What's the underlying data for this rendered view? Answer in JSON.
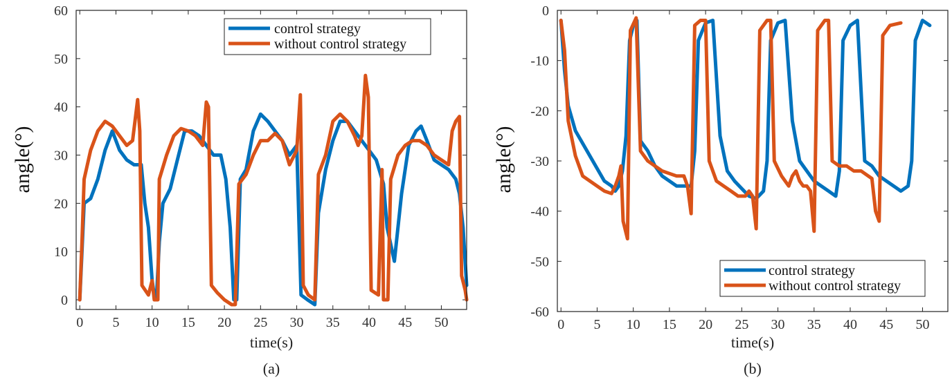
{
  "colors": {
    "control": "#0072BD",
    "without": "#D95319"
  },
  "chart_data": [
    {
      "type": "line",
      "caption": "(a)",
      "xlabel": "time(s)",
      "ylabel": "angle(°)",
      "xlim": [
        -0.5,
        53.5
      ],
      "ylim": [
        -2,
        60
      ],
      "xticks": [
        0,
        5,
        10,
        15,
        20,
        25,
        30,
        35,
        40,
        45,
        50
      ],
      "yticks": [
        0,
        10,
        20,
        30,
        40,
        50,
        60
      ],
      "legend_position": "top-right",
      "series": [
        {
          "name": "control strategy",
          "key": "control",
          "points": [
            [
              0,
              0
            ],
            [
              0.3,
              10
            ],
            [
              0.6,
              20
            ],
            [
              1.5,
              21
            ],
            [
              2.5,
              25
            ],
            [
              3.5,
              31
            ],
            [
              4.5,
              35
            ],
            [
              5.5,
              31
            ],
            [
              6.5,
              29
            ],
            [
              7.5,
              28
            ],
            [
              8.5,
              28
            ],
            [
              9,
              20
            ],
            [
              9.5,
              15
            ],
            [
              10,
              4
            ],
            [
              10.3,
              1
            ],
            [
              10.6,
              0
            ],
            [
              11,
              12
            ],
            [
              11.5,
              20
            ],
            [
              12.5,
              23
            ],
            [
              13.5,
              29
            ],
            [
              14.5,
              35
            ],
            [
              15.5,
              35
            ],
            [
              16.5,
              34
            ],
            [
              17.5,
              32
            ],
            [
              18.5,
              30
            ],
            [
              19.5,
              30
            ],
            [
              20.2,
              25
            ],
            [
              20.8,
              15
            ],
            [
              21.3,
              0
            ],
            [
              21.7,
              0
            ],
            [
              22.2,
              25
            ],
            [
              23,
              27
            ],
            [
              24,
              35
            ],
            [
              25,
              38.5
            ],
            [
              26,
              37
            ],
            [
              27,
              35
            ],
            [
              28,
              33
            ],
            [
              29,
              30
            ],
            [
              30,
              32
            ],
            [
              30.6,
              1
            ],
            [
              31.5,
              0
            ],
            [
              32.5,
              -1
            ],
            [
              33,
              18
            ],
            [
              34,
              27
            ],
            [
              35,
              33
            ],
            [
              36,
              37
            ],
            [
              37,
              37
            ],
            [
              38,
              35
            ],
            [
              39,
              33
            ],
            [
              40,
              31
            ],
            [
              41,
              29
            ],
            [
              42,
              24
            ],
            [
              42.5,
              15
            ],
            [
              43.5,
              8
            ],
            [
              44.5,
              22
            ],
            [
              45.5,
              32
            ],
            [
              46.5,
              35
            ],
            [
              47.2,
              36
            ],
            [
              48,
              33
            ],
            [
              49,
              29
            ],
            [
              50,
              28
            ],
            [
              51,
              27
            ],
            [
              52,
              25
            ],
            [
              52.5,
              22
            ],
            [
              53,
              15
            ],
            [
              53.5,
              3
            ]
          ]
        },
        {
          "name": "without control strategy",
          "key": "without",
          "points": [
            [
              0,
              0
            ],
            [
              0.3,
              12
            ],
            [
              0.6,
              25
            ],
            [
              1.5,
              31
            ],
            [
              2.5,
              35
            ],
            [
              3.5,
              37
            ],
            [
              4.5,
              36
            ],
            [
              5.5,
              34
            ],
            [
              6.5,
              32
            ],
            [
              7.3,
              33
            ],
            [
              8,
              41.5
            ],
            [
              8.3,
              35
            ],
            [
              8.6,
              3
            ],
            [
              9.5,
              1
            ],
            [
              10,
              4
            ],
            [
              10.3,
              0
            ],
            [
              10.8,
              0
            ],
            [
              11,
              25
            ],
            [
              12,
              30
            ],
            [
              13,
              34
            ],
            [
              14,
              35.5
            ],
            [
              15,
              35
            ],
            [
              16,
              34
            ],
            [
              17,
              32
            ],
            [
              17.5,
              41
            ],
            [
              17.8,
              40
            ],
            [
              18.2,
              3
            ],
            [
              19,
              1.5
            ],
            [
              20,
              0
            ],
            [
              21,
              -1
            ],
            [
              21.5,
              -1
            ],
            [
              22,
              24
            ],
            [
              23,
              26
            ],
            [
              24,
              30
            ],
            [
              25,
              33
            ],
            [
              26,
              33
            ],
            [
              27,
              34.5
            ],
            [
              28,
              33
            ],
            [
              29,
              28
            ],
            [
              30,
              31
            ],
            [
              30.5,
              42.5
            ],
            [
              30.9,
              3
            ],
            [
              31.6,
              1
            ],
            [
              32.5,
              0
            ],
            [
              33,
              26
            ],
            [
              34,
              30
            ],
            [
              35,
              37
            ],
            [
              36,
              38.5
            ],
            [
              37,
              37
            ],
            [
              38,
              34
            ],
            [
              38.5,
              32
            ],
            [
              39,
              34
            ],
            [
              39.5,
              46.5
            ],
            [
              39.9,
              42
            ],
            [
              40.3,
              2
            ],
            [
              41.3,
              1
            ],
            [
              41.8,
              27
            ],
            [
              42,
              0
            ],
            [
              42.6,
              0
            ],
            [
              43,
              25
            ],
            [
              44,
              30
            ],
            [
              45,
              32
            ],
            [
              46,
              33
            ],
            [
              47,
              33
            ],
            [
              48,
              32
            ],
            [
              49,
              30
            ],
            [
              50,
              29
            ],
            [
              51,
              28
            ],
            [
              51.5,
              35
            ],
            [
              52,
              37
            ],
            [
              52.5,
              38
            ],
            [
              52.8,
              5
            ],
            [
              53.3,
              2
            ],
            [
              53.5,
              0
            ]
          ]
        }
      ]
    },
    {
      "type": "line",
      "caption": "(b)",
      "xlabel": "time(s)",
      "ylabel": "angle(°)",
      "xlim": [
        -0.5,
        53.5
      ],
      "ylim": [
        -60,
        0
      ],
      "xticks": [
        0,
        5,
        10,
        15,
        20,
        25,
        30,
        35,
        40,
        45,
        50
      ],
      "yticks": [
        0,
        -10,
        -20,
        -30,
        -40,
        -50,
        -60
      ],
      "legend_position": "bottom-right",
      "series": [
        {
          "name": "control strategy",
          "key": "control",
          "points": [
            [
              0,
              -2
            ],
            [
              0.5,
              -12
            ],
            [
              1,
              -19
            ],
            [
              2,
              -24
            ],
            [
              3,
              -26.5
            ],
            [
              4,
              -29
            ],
            [
              5,
              -31.5
            ],
            [
              6,
              -34
            ],
            [
              7,
              -35
            ],
            [
              7.5,
              -36
            ],
            [
              8,
              -35
            ],
            [
              8.5,
              -32
            ],
            [
              9,
              -25
            ],
            [
              9.5,
              -6
            ],
            [
              10,
              -3
            ],
            [
              10.5,
              -2
            ],
            [
              11,
              -26
            ],
            [
              12,
              -28
            ],
            [
              13,
              -31
            ],
            [
              14,
              -33
            ],
            [
              15,
              -34
            ],
            [
              16,
              -35
            ],
            [
              17,
              -35
            ],
            [
              18,
              -35
            ],
            [
              18.5,
              -28
            ],
            [
              19,
              -6
            ],
            [
              20,
              -2.5
            ],
            [
              21,
              -2
            ],
            [
              22,
              -25
            ],
            [
              23,
              -32
            ],
            [
              24,
              -34
            ],
            [
              25,
              -35.5
            ],
            [
              26,
              -37
            ],
            [
              27,
              -37.5
            ],
            [
              28,
              -36
            ],
            [
              28.5,
              -30
            ],
            [
              29,
              -6
            ],
            [
              30,
              -2.5
            ],
            [
              31,
              -2
            ],
            [
              32,
              -22
            ],
            [
              33,
              -30
            ],
            [
              34,
              -32
            ],
            [
              35,
              -34
            ],
            [
              36,
              -35
            ],
            [
              37,
              -36
            ],
            [
              38,
              -37
            ],
            [
              38.5,
              -32
            ],
            [
              39,
              -6
            ],
            [
              40,
              -3
            ],
            [
              41,
              -2
            ],
            [
              42,
              -30
            ],
            [
              43,
              -31
            ],
            [
              44,
              -33
            ],
            [
              45,
              -34
            ],
            [
              46,
              -35
            ],
            [
              47,
              -36
            ],
            [
              48,
              -35
            ],
            [
              48.5,
              -30
            ],
            [
              49,
              -6
            ],
            [
              50,
              -2
            ],
            [
              50.5,
              -2.5
            ],
            [
              51,
              -3
            ]
          ]
        },
        {
          "name": "without control strategy",
          "key": "without",
          "points": [
            [
              0,
              -2
            ],
            [
              0.5,
              -8
            ],
            [
              1,
              -22
            ],
            [
              2,
              -29
            ],
            [
              3,
              -33
            ],
            [
              4,
              -34
            ],
            [
              5,
              -35
            ],
            [
              6,
              -36
            ],
            [
              7,
              -36.5
            ],
            [
              7.5,
              -35
            ],
            [
              8,
              -33
            ],
            [
              8.3,
              -31
            ],
            [
              8.6,
              -42
            ],
            [
              9.2,
              -45.5
            ],
            [
              9.6,
              -4
            ],
            [
              10.4,
              -1.5
            ],
            [
              11,
              -28
            ],
            [
              12,
              -30
            ],
            [
              13,
              -31
            ],
            [
              14,
              -32
            ],
            [
              15,
              -32.5
            ],
            [
              16,
              -33
            ],
            [
              17,
              -33
            ],
            [
              17.5,
              -35
            ],
            [
              18,
              -40.5
            ],
            [
              18.5,
              -3
            ],
            [
              19.3,
              -2
            ],
            [
              20,
              -2
            ],
            [
              20.5,
              -30
            ],
            [
              21.5,
              -34
            ],
            [
              22.5,
              -35
            ],
            [
              23.5,
              -36
            ],
            [
              24.5,
              -37
            ],
            [
              25.5,
              -37
            ],
            [
              26,
              -36
            ],
            [
              26.5,
              -37
            ],
            [
              27,
              -43.5
            ],
            [
              27.5,
              -4
            ],
            [
              28.5,
              -2
            ],
            [
              29,
              -2
            ],
            [
              29.5,
              -30
            ],
            [
              30.5,
              -33
            ],
            [
              31.5,
              -35
            ],
            [
              32,
              -33
            ],
            [
              32.5,
              -32
            ],
            [
              33,
              -34
            ],
            [
              33.5,
              -35
            ],
            [
              34,
              -35
            ],
            [
              34.5,
              -36
            ],
            [
              35,
              -44
            ],
            [
              35.5,
              -4
            ],
            [
              36.5,
              -2
            ],
            [
              37,
              -2
            ],
            [
              37.5,
              -30
            ],
            [
              38.5,
              -31
            ],
            [
              39.5,
              -31
            ],
            [
              40.5,
              -32
            ],
            [
              41.5,
              -32
            ],
            [
              42.5,
              -33
            ],
            [
              43,
              -33.5
            ],
            [
              43.5,
              -40
            ],
            [
              44,
              -42
            ],
            [
              44.5,
              -5
            ],
            [
              45.5,
              -3
            ],
            [
              47,
              -2.5
            ]
          ]
        }
      ]
    }
  ]
}
